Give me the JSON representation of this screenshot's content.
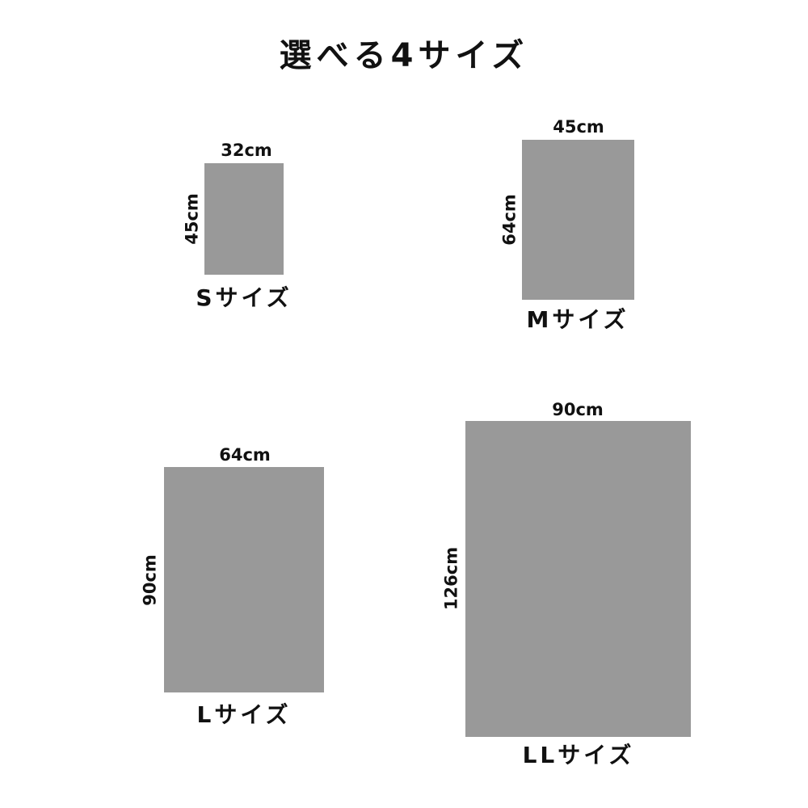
{
  "title": "選べる4サイズ",
  "rect_color": "#999999",
  "sizes": [
    {
      "name": "Sサイズ",
      "width": "32cm",
      "height": "45cm"
    },
    {
      "name": "Mサイズ",
      "width": "45cm",
      "height": "64cm"
    },
    {
      "name": "Lサイズ",
      "width": "64cm",
      "height": "90cm"
    },
    {
      "name": "LLサイズ",
      "width": "90cm",
      "height": "126cm"
    }
  ]
}
